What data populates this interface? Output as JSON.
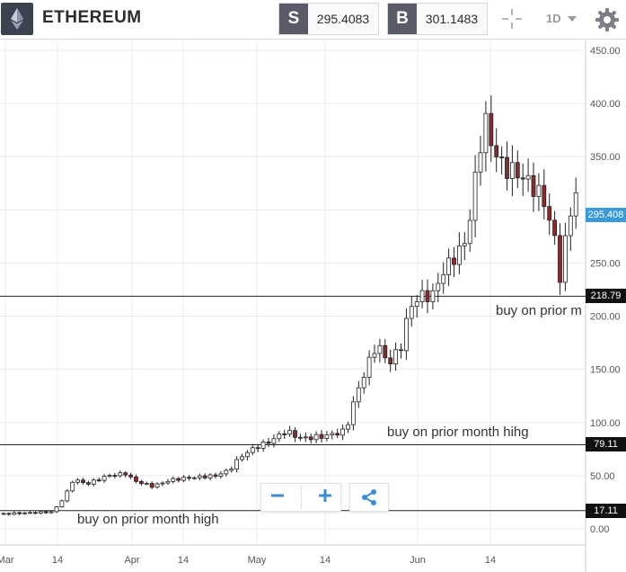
{
  "header": {
    "logo_icon": "ethereum-diamond-icon",
    "title": "ETHEREUM",
    "sell": {
      "tag": "S",
      "price": "295.4083"
    },
    "buy": {
      "tag": "B",
      "price": "301.1483"
    },
    "crosshair_icon": "crosshair-icon",
    "timeframe": "1D",
    "settings_icon": "gear-icon"
  },
  "chart_data": {
    "type": "candlestick",
    "x_tick_labels": [
      "Mar",
      "14",
      "Apr",
      "14",
      "May",
      "14",
      "Jun",
      "14"
    ],
    "y_tick_labels": [
      "0.00",
      "50.00",
      "100.00",
      "150.00",
      "200.00",
      "250.00",
      "350.00",
      "400.00",
      "450.00"
    ],
    "ylim": [
      -5,
      455
    ],
    "current_price": "295.408",
    "horizontal_lines": [
      {
        "value": 218.79,
        "label": "218.79"
      },
      {
        "value": 79.11,
        "label": "79.11"
      },
      {
        "value": 17.11,
        "label": "17.11"
      }
    ],
    "annotations": [
      {
        "text": "buy on prior month high",
        "value": 2
      },
      {
        "text": "buy on prior month hihg",
        "value": 84
      },
      {
        "text": "buy on prior m",
        "value": 198
      }
    ],
    "colors": {
      "bull": "#ffffff",
      "bear": "#8b2a2a",
      "price_tag": "#3b9ad9",
      "line_tag": "#111111"
    }
  },
  "zoom_controls": {
    "zoom_out_icon": "minus-icon",
    "zoom_in_icon": "plus-icon",
    "share_icon": "share-icon"
  }
}
